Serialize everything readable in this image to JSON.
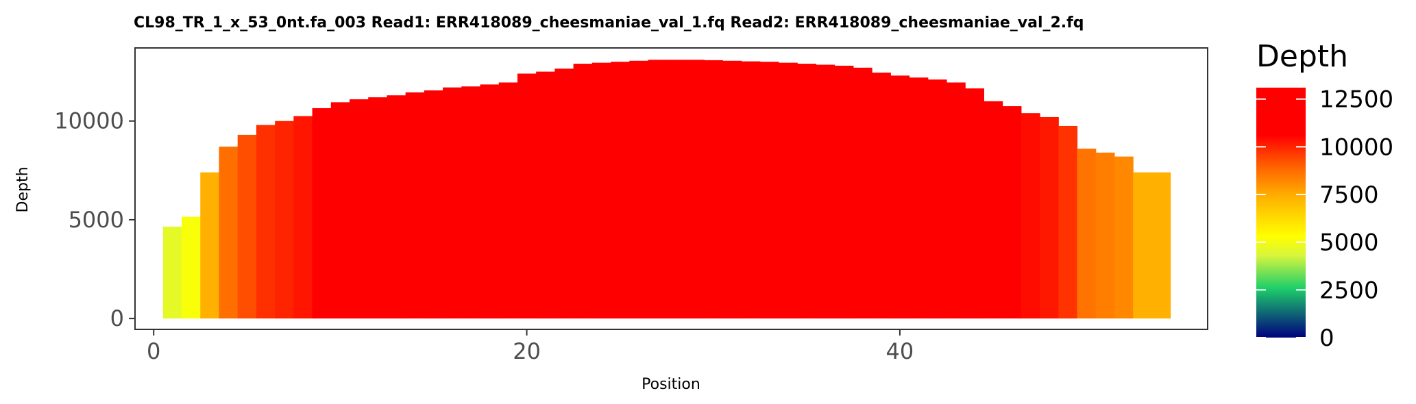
{
  "chart_data": {
    "type": "bar",
    "title": "CL98_TR_1_x_53_0nt.fa_003   Read1: ERR418089_cheesmaniae_val_1.fq   Read2: ERR418089_cheesmaniae_val_2.fq",
    "xlabel": "Position",
    "ylabel": "Depth",
    "xlim": [
      -1,
      56.5
    ],
    "ylim": [
      -550,
      13700
    ],
    "xticks": [
      0,
      20,
      40
    ],
    "yticks": [
      0,
      5000,
      10000
    ],
    "x": [
      1,
      2,
      3,
      4,
      5,
      6,
      7,
      8,
      9,
      10,
      11,
      12,
      13,
      14,
      15,
      16,
      17,
      18,
      19,
      20,
      21,
      22,
      23,
      24,
      25,
      26,
      27,
      28,
      29,
      30,
      31,
      32,
      33,
      34,
      35,
      36,
      37,
      38,
      39,
      40,
      41,
      42,
      43,
      44,
      45,
      46,
      47,
      48,
      49,
      50,
      51,
      52,
      53,
      54
    ],
    "values": [
      4650,
      5150,
      7400,
      8700,
      9300,
      9800,
      10000,
      10250,
      10650,
      10950,
      11100,
      11200,
      11300,
      11450,
      11550,
      11700,
      11750,
      11850,
      11950,
      12400,
      12500,
      12650,
      12900,
      12950,
      13000,
      13050,
      13100,
      13100,
      13100,
      13080,
      13050,
      13020,
      13000,
      12950,
      12900,
      12850,
      12800,
      12700,
      12450,
      12300,
      12200,
      12100,
      11950,
      11650,
      11000,
      10750,
      10400,
      10200,
      9750,
      8600,
      8400,
      8200,
      7400,
      7400
    ],
    "color_scale": {
      "title": "Depth",
      "limits": [
        0,
        13100
      ],
      "breaks": [
        0,
        2500,
        5000,
        7500,
        10000,
        12500
      ],
      "stops": [
        {
          "value": 0,
          "color": "#00007f"
        },
        {
          "value": 2600,
          "color": "#1fcf6a"
        },
        {
          "value": 4300,
          "color": "#d7f53c"
        },
        {
          "value": 5300,
          "color": "#ffff00"
        },
        {
          "value": 7400,
          "color": "#ffb000"
        },
        {
          "value": 9000,
          "color": "#ff6000"
        },
        {
          "value": 10600,
          "color": "#ff0000"
        },
        {
          "value": 13100,
          "color": "#ff0000"
        }
      ]
    },
    "grid": false,
    "legend_position": "right"
  }
}
